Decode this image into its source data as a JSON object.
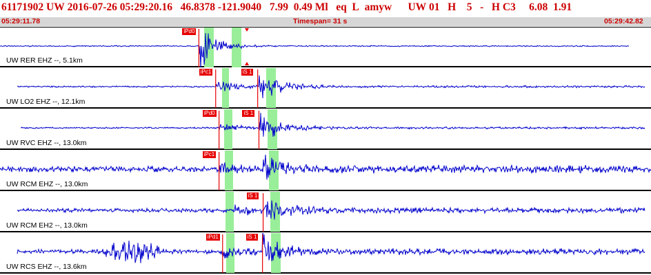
{
  "header": {
    "event_id": "61171902",
    "network": "UW",
    "datetime": "2016-07-26 05:29:20.16",
    "lat": "46.8378",
    "lon": "-121.9040",
    "depth": "7.99",
    "magnitude": "0.49",
    "mag_type": "Ml",
    "event_type": "eq",
    "location_flag": "L",
    "author": "amyw",
    "source_net": "UW",
    "version": "01",
    "h_flag": "H",
    "count": "5",
    "dash": "-",
    "quality": "H C3",
    "val1": "6.08",
    "val2": "1.91"
  },
  "timebar": {
    "start": "05:29:11.78",
    "timespan_label": "Timespan=",
    "timespan_value": "31 s",
    "end": "05:29:42.82"
  },
  "colors": {
    "title_red": "#cc0000",
    "trace_blue": "#0000cc",
    "pick_red": "#e60000",
    "window_green": "#99ee99",
    "timebar_gray": "#d6d6d6"
  },
  "channels": [
    {
      "label": "UW RER EHZ --, 5.1km",
      "picks": [
        {
          "text": "iPd0",
          "time": 9.47
        }
      ]
    },
    {
      "label": "UW LO2 EHZ --, 12.1km",
      "picks": [
        {
          "text": "iPc1",
          "time": 10.27
        },
        {
          "text": "iS 1",
          "time": 12.27
        }
      ]
    },
    {
      "label": "UW RVC EHZ --, 13.0km",
      "picks": [
        {
          "text": "iPd0",
          "time": 10.43
        },
        {
          "text": "iS 1",
          "time": 12.33
        }
      ]
    },
    {
      "label": "UW RCM EHZ --, 13.0km",
      "picks": [
        {
          "text": "iPc1",
          "time": 10.43
        }
      ]
    },
    {
      "label": "UW RCM EH2 --, 13.0km",
      "picks": [
        {
          "text": "iS 1",
          "time": 12.53
        }
      ]
    },
    {
      "label": "UW RCS EHZ --, 13.6km",
      "picks": [
        {
          "text": "iPd1",
          "time": 10.6
        },
        {
          "text": "iS 1",
          "time": 12.5
        }
      ]
    }
  ]
}
